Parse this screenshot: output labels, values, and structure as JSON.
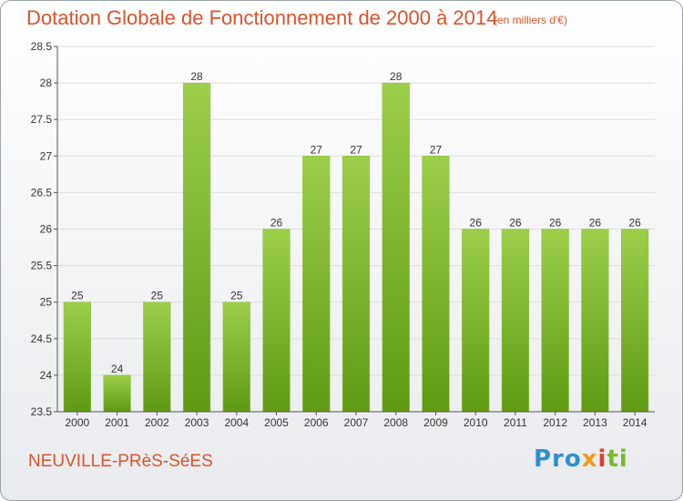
{
  "header": {
    "title": "Dotation Globale de Fonctionnement de 2000 à 2014",
    "subtitle": "(en milliers d'€)"
  },
  "footer": {
    "commune": "NEUVILLE-PRèS-SéES",
    "logo": {
      "p1": "Pro",
      "p2": "x",
      "p3": "i",
      "p4": "ti"
    }
  },
  "colors": {
    "title": "#d9532b",
    "bar_light": "#9ccf4a",
    "bar_dark": "#5f9a12",
    "grid": "#dcdcdc",
    "axis": "#555555"
  },
  "chart_data": {
    "type": "bar",
    "title": "Dotation Globale de Fonctionnement de 2000 à 2014",
    "subtitle": "(en milliers d'€)",
    "xlabel": "",
    "ylabel": "",
    "categories": [
      "2000",
      "2001",
      "2002",
      "2003",
      "2004",
      "2005",
      "2006",
      "2007",
      "2008",
      "2009",
      "2010",
      "2011",
      "2012",
      "2013",
      "2014"
    ],
    "values": [
      25,
      24,
      25,
      28,
      25,
      26,
      27,
      27,
      28,
      27,
      26,
      26,
      26,
      26,
      26
    ],
    "ylim": [
      23.5,
      28.5
    ],
    "yticks": [
      23.5,
      24,
      24.5,
      25,
      25.5,
      26,
      26.5,
      27,
      27.5,
      28,
      28.5
    ],
    "ytick_labels": [
      "23.5",
      "24",
      "24.5",
      "25",
      "25.5",
      "26",
      "26.5",
      "27",
      "27.5",
      "28",
      "28.5"
    ],
    "grid": true
  }
}
